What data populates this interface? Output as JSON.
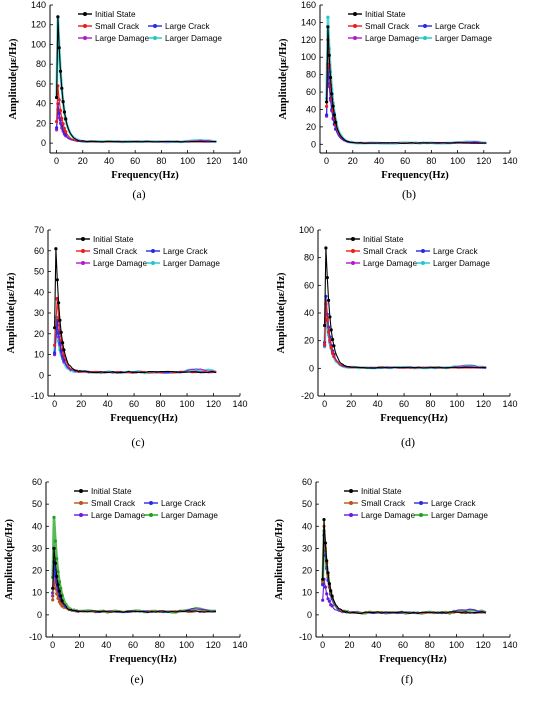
{
  "figure": {
    "chart_data": [
      {
        "type": "line",
        "xlabel": "Frequency(Hz)",
        "ylabel": "Amplitude(με/Hz)",
        "xlim": [
          -5,
          140
        ],
        "ylim": [
          -10,
          140
        ],
        "xticks": [
          "0",
          "20",
          "40",
          "60",
          "80",
          "100",
          "120",
          "140"
        ],
        "yticks": [
          "0",
          "20",
          "40",
          "60",
          "80",
          "100",
          "120",
          "140"
        ],
        "caption": "(a)",
        "legend_placement": "top-right",
        "series": [
          {
            "name": "Initial State",
            "color": "#000000",
            "peak": [
              1,
              128
            ]
          },
          {
            "name": "Small Crack",
            "color": "#ee1c1c",
            "peak": [
              1,
              58
            ]
          },
          {
            "name": "Large Crack",
            "color": "#2a2ae0",
            "peak": [
              1,
              40
            ]
          },
          {
            "name": "Large Damage",
            "color": "#b01cc8",
            "peak": [
              1,
              34
            ]
          },
          {
            "name": "Larger Damage",
            "color": "#1ec8c8",
            "peak": [
              1,
              128
            ]
          }
        ],
        "tail_level": 1.5
      },
      {
        "type": "line",
        "xlabel": "Frequency(Hz)",
        "ylabel": "Amplitude(με/Hz)",
        "xlim": [
          -5,
          140
        ],
        "ylim": [
          -10,
          160
        ],
        "xticks": [
          "0",
          "20",
          "40",
          "60",
          "80",
          "100",
          "120",
          "140"
        ],
        "yticks": [
          "0",
          "20",
          "40",
          "60",
          "80",
          "100",
          "120",
          "140",
          "160"
        ],
        "caption": "(b)",
        "legend_placement": "top-right",
        "series": [
          {
            "name": "Initial State",
            "color": "#000000",
            "peak": [
              1,
              135
            ]
          },
          {
            "name": "Small Crack",
            "color": "#ee1c1c",
            "peak": [
              1,
              120
            ]
          },
          {
            "name": "Large Crack",
            "color": "#2a2ae0",
            "peak": [
              1,
              92
            ]
          },
          {
            "name": "Large Damage",
            "color": "#b01cc8",
            "peak": [
              1,
              88
            ]
          },
          {
            "name": "Larger Damage",
            "color": "#1ec8c8",
            "peak": [
              1,
              146
            ]
          }
        ],
        "tail_level": 1.5
      },
      {
        "type": "line",
        "xlabel": "Frequency(Hz)",
        "ylabel": "Amplitude(με/Hz)",
        "xlim": [
          -5,
          140
        ],
        "ylim": [
          -10,
          70
        ],
        "xticks": [
          "0",
          "20",
          "40",
          "60",
          "80",
          "100",
          "120",
          "140"
        ],
        "yticks": [
          "-10",
          "0",
          "10",
          "20",
          "30",
          "40",
          "50",
          "60",
          "70"
        ],
        "caption": "(c)",
        "legend_placement": "top-right",
        "series": [
          {
            "name": "Initial State",
            "color": "#000000",
            "peak": [
              1,
              61
            ]
          },
          {
            "name": "Small Crack",
            "color": "#ee1c1c",
            "peak": [
              2,
              37
            ]
          },
          {
            "name": "Large Crack",
            "color": "#2a2ae0",
            "peak": [
              2,
              26
            ]
          },
          {
            "name": "Large Damage",
            "color": "#b01cc8",
            "peak": [
              2,
              24
            ]
          },
          {
            "name": "Larger Damage",
            "color": "#1ec8c8",
            "peak": [
              1,
              28
            ]
          }
        ],
        "tail_level": 1.5
      },
      {
        "type": "line",
        "xlabel": "Frequency(Hz)",
        "ylabel": "Amplitude(με/Hz)",
        "xlim": [
          -5,
          140
        ],
        "ylim": [
          -20,
          100
        ],
        "xticks": [
          "0",
          "20",
          "40",
          "60",
          "80",
          "100",
          "120",
          "140"
        ],
        "yticks": [
          "-20",
          "0",
          "20",
          "40",
          "60",
          "80",
          "100"
        ],
        "caption": "(d)",
        "legend_placement": "top-right",
        "series": [
          {
            "name": "Initial State",
            "color": "#000000",
            "peak": [
              1,
              87
            ]
          },
          {
            "name": "Small Crack",
            "color": "#ee1c1c",
            "peak": [
              1,
              47
            ]
          },
          {
            "name": "Large Crack",
            "color": "#2a2ae0",
            "peak": [
              1,
              52
            ]
          },
          {
            "name": "Large Damage",
            "color": "#b01cc8",
            "peak": [
              1,
              46
            ]
          },
          {
            "name": "Larger Damage",
            "color": "#1ec8c8",
            "peak": [
              1,
              43
            ]
          }
        ],
        "tail_level": 0.5
      },
      {
        "type": "line",
        "xlabel": "Frequency(Hz)",
        "ylabel": "Amplitude(με/Hz)",
        "xlim": [
          -5,
          140
        ],
        "ylim": [
          -10,
          60
        ],
        "xticks": [
          "0",
          "20",
          "40",
          "60",
          "80",
          "100",
          "120",
          "140"
        ],
        "yticks": [
          "-10",
          "0",
          "10",
          "20",
          "30",
          "40",
          "50",
          "60"
        ],
        "caption": "(e)",
        "legend_placement": "top-right",
        "series": [
          {
            "name": "Initial State",
            "color": "#000000",
            "peak": [
              1,
              30
            ]
          },
          {
            "name": "Small Crack",
            "color": "#b8541c",
            "peak": [
              1,
              15
            ]
          },
          {
            "name": "Large Crack",
            "color": "#2a2ae0",
            "peak": [
              1,
              24
            ]
          },
          {
            "name": "Large Damage",
            "color": "#6a1cd8",
            "peak": [
              1,
              20
            ]
          },
          {
            "name": "Larger Damage",
            "color": "#1ea01e",
            "peak": [
              1,
              44
            ]
          }
        ],
        "tail_level": 1.5
      },
      {
        "type": "line",
        "xlabel": "Frequency(Hz)",
        "ylabel": "Amplitude(με/Hz)",
        "xlim": [
          -5,
          140
        ],
        "ylim": [
          -10,
          60
        ],
        "xticks": [
          "0",
          "20",
          "40",
          "60",
          "80",
          "100",
          "120",
          "140"
        ],
        "yticks": [
          "-10",
          "0",
          "10",
          "20",
          "30",
          "40",
          "50",
          "60"
        ],
        "caption": "(f)",
        "legend_placement": "top-right",
        "series": [
          {
            "name": "Initial State",
            "color": "#000000",
            "peak": [
              1,
              43
            ]
          },
          {
            "name": "Small Crack",
            "color": "#b8541c",
            "peak": [
              1,
              40
            ]
          },
          {
            "name": "Large Crack",
            "color": "#2a2ae0",
            "peak": [
              1,
              36
            ]
          },
          {
            "name": "Large Damage",
            "color": "#6a1cd8",
            "peak": [
              1,
              16
            ]
          },
          {
            "name": "Larger Damage",
            "color": "#1ea01e",
            "peak": [
              1,
              38
            ]
          }
        ],
        "tail_level": 1.0
      }
    ]
  }
}
